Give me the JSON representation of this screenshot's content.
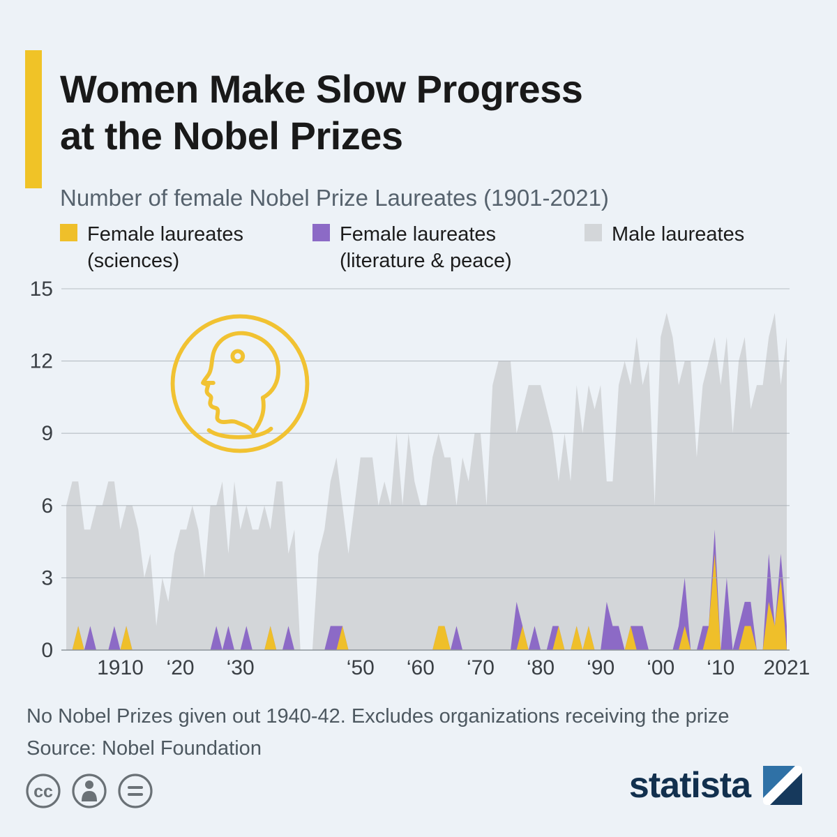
{
  "header": {
    "title_line1": "Women Make Slow Progress",
    "title_line2": "at the Nobel Prizes",
    "subtitle": "Number of female Nobel Prize Laureates (1901-2021)"
  },
  "legend": [
    {
      "label_line1": "Female laureates",
      "label_line2": "(sciences)",
      "color": "#efbf2a"
    },
    {
      "label_line1": "Female laureates",
      "label_line2": "(literature & peace)",
      "color": "#8c6ac6"
    },
    {
      "label_line1": "Male laureates",
      "label_line2": "",
      "color": "#d3d6d9"
    }
  ],
  "chart_data": {
    "type": "area",
    "stacked": true,
    "title": "Number of female Nobel Prize Laureates (1901-2021)",
    "x_start": 1901,
    "x_end": 2021,
    "ylim": [
      0,
      15
    ],
    "yticks": [
      0,
      3,
      6,
      9,
      12,
      15
    ],
    "xticks": [
      {
        "year": 1910,
        "label": "1910"
      },
      {
        "year": 1920,
        "label": "‘20"
      },
      {
        "year": 1930,
        "label": "‘30"
      },
      {
        "year": 1950,
        "label": "‘50"
      },
      {
        "year": 1960,
        "label": "‘60"
      },
      {
        "year": 1970,
        "label": "‘70"
      },
      {
        "year": 1980,
        "label": "‘80"
      },
      {
        "year": 1990,
        "label": "‘90"
      },
      {
        "year": 2000,
        "label": "‘00"
      },
      {
        "year": 2010,
        "label": "‘10"
      },
      {
        "year": 2021,
        "label": "2021"
      }
    ],
    "grid": true,
    "legend_position": "top",
    "series": [
      {
        "name": "Female laureates (sciences)",
        "color": "#efbf2a",
        "values": [
          0,
          0,
          1,
          0,
          0,
          0,
          0,
          0,
          0,
          0,
          1,
          0,
          0,
          0,
          0,
          0,
          0,
          0,
          0,
          0,
          0,
          0,
          0,
          0,
          0,
          0,
          0,
          0,
          0,
          0,
          0,
          0,
          0,
          0,
          1,
          0,
          0,
          0,
          0,
          0,
          0,
          0,
          0,
          0,
          0,
          0,
          1,
          0,
          0,
          0,
          0,
          0,
          0,
          0,
          0,
          0,
          0,
          0,
          0,
          0,
          0,
          0,
          1,
          1,
          0,
          0,
          0,
          0,
          0,
          0,
          0,
          0,
          0,
          0,
          0,
          0,
          1,
          0,
          0,
          0,
          0,
          0,
          1,
          0,
          0,
          1,
          0,
          1,
          0,
          0,
          0,
          0,
          0,
          0,
          1,
          0,
          0,
          0,
          0,
          0,
          0,
          0,
          0,
          1,
          0,
          0,
          0,
          1,
          4,
          0,
          0,
          0,
          0,
          1,
          1,
          0,
          0,
          2,
          1,
          3,
          0
        ]
      },
      {
        "name": "Female laureates (literature & peace)",
        "color": "#8c6ac6",
        "values": [
          0,
          0,
          0,
          0,
          1,
          0,
          0,
          0,
          1,
          0,
          0,
          0,
          0,
          0,
          0,
          0,
          0,
          0,
          0,
          0,
          0,
          0,
          0,
          0,
          0,
          1,
          0,
          1,
          0,
          0,
          1,
          0,
          0,
          0,
          0,
          0,
          0,
          1,
          0,
          0,
          0,
          0,
          0,
          0,
          1,
          1,
          0,
          0,
          0,
          0,
          0,
          0,
          0,
          0,
          0,
          0,
          0,
          0,
          0,
          0,
          0,
          0,
          0,
          0,
          0,
          1,
          0,
          0,
          0,
          0,
          0,
          0,
          0,
          0,
          0,
          2,
          0,
          0,
          1,
          0,
          0,
          1,
          0,
          0,
          0,
          0,
          0,
          0,
          0,
          0,
          2,
          1,
          1,
          0,
          0,
          1,
          1,
          0,
          0,
          0,
          0,
          0,
          1,
          2,
          0,
          0,
          1,
          0,
          1,
          0,
          3,
          0,
          1,
          1,
          1,
          0,
          0,
          2,
          0,
          1,
          1
        ]
      },
      {
        "name": "Male laureates",
        "color": "#d3d6d9",
        "values": [
          6,
          7,
          6,
          5,
          4,
          6,
          6,
          7,
          6,
          5,
          5,
          6,
          5,
          3,
          4,
          1,
          3,
          2,
          4,
          5,
          5,
          6,
          5,
          3,
          6,
          5,
          7,
          3,
          7,
          5,
          5,
          5,
          5,
          6,
          4,
          7,
          7,
          3,
          5,
          0,
          0,
          0,
          4,
          5,
          6,
          7,
          5,
          4,
          6,
          8,
          8,
          8,
          6,
          7,
          6,
          9,
          6,
          9,
          7,
          6,
          6,
          8,
          8,
          7,
          8,
          5,
          8,
          7,
          9,
          9,
          6,
          11,
          12,
          12,
          12,
          7,
          9,
          11,
          10,
          11,
          10,
          8,
          6,
          9,
          7,
          10,
          9,
          10,
          10,
          11,
          5,
          6,
          10,
          12,
          10,
          12,
          10,
          12,
          6,
          13,
          14,
          13,
          10,
          9,
          12,
          8,
          10,
          11,
          8,
          11,
          10,
          9,
          11,
          11,
          8,
          11,
          11,
          9,
          13,
          7,
          12
        ]
      }
    ]
  },
  "footer": {
    "note": "No Nobel Prizes given out 1940-42. Excludes organizations receiving the prize",
    "source": "Source: Nobel Foundation"
  },
  "badges": {
    "cc_label": "cc"
  },
  "branding": {
    "logo_text": "statista"
  },
  "colors": {
    "accent_yellow": "#f0c327",
    "background": "#edf2f7",
    "logo_navy": "#12304e"
  }
}
